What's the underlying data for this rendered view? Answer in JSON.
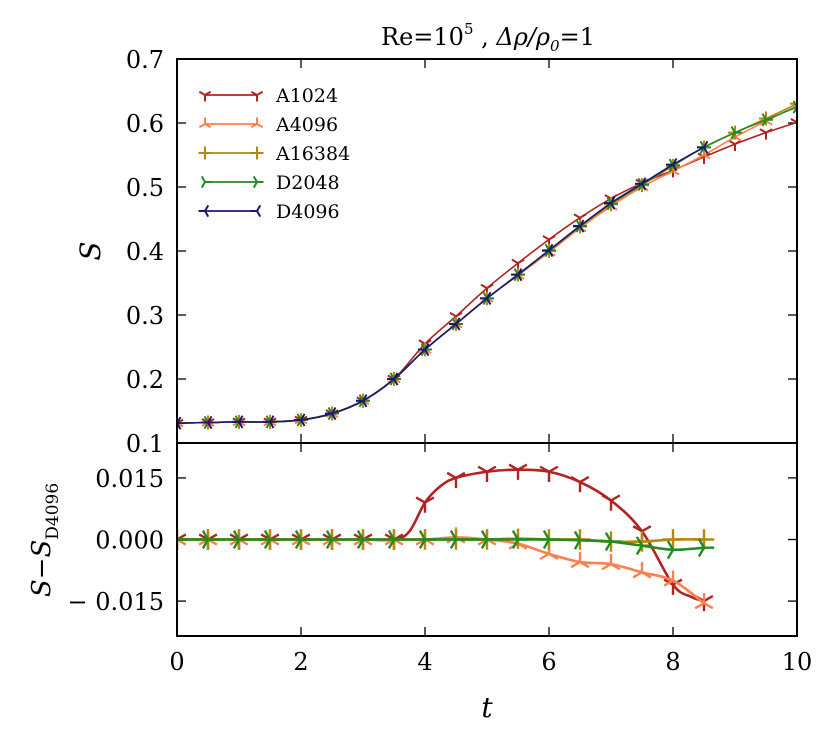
{
  "chart_data": [
    {
      "type": "line",
      "title_parts": {
        "re": "Re",
        "eq1": "=10",
        "exp": "5",
        "sep": " ,  ",
        "delta": "Δρ/ρ",
        "sub": "0",
        "eq2": "=1"
      },
      "title": "Re = 10^5 , Δρ/ρ0 = 1",
      "xlabel": "t",
      "ylabel": "S",
      "xlim": [
        0,
        10
      ],
      "ylim": [
        0.1,
        0.7
      ],
      "xticks": [
        "0",
        "2",
        "4",
        "6",
        "8",
        "10"
      ],
      "yticks": [
        "0.1",
        "0.2",
        "0.3",
        "0.4",
        "0.5",
        "0.6",
        "0.7"
      ],
      "legend": "top-left",
      "series": [
        {
          "name": "A1024",
          "color": "#b22222",
          "marker": "tri_down",
          "x": [
            0,
            0.5,
            1,
            1.5,
            2,
            2.5,
            3,
            3.5,
            4,
            4.5,
            5,
            5.5,
            6,
            6.5,
            7,
            7.5,
            8,
            8.5,
            9,
            9.5,
            10
          ],
          "y": [
            0.131,
            0.132,
            0.133,
            0.133,
            0.136,
            0.146,
            0.166,
            0.2,
            0.255,
            0.298,
            0.342,
            0.381,
            0.418,
            0.452,
            0.482,
            0.506,
            0.526,
            0.547,
            0.567,
            0.585,
            0.601
          ]
        },
        {
          "name": "A4096",
          "color": "#ff7f50",
          "marker": "tri_up",
          "x": [
            0,
            0.5,
            1,
            1.5,
            2,
            2.5,
            3,
            3.5,
            4,
            4.5,
            5,
            5.5,
            6,
            6.5,
            7,
            7.5,
            8,
            8.5,
            9,
            9.5,
            10
          ],
          "y": [
            0.131,
            0.132,
            0.133,
            0.133,
            0.136,
            0.146,
            0.166,
            0.2,
            0.246,
            0.286,
            0.326,
            0.362,
            0.398,
            0.436,
            0.47,
            0.5,
            0.525,
            0.55,
            0.578,
            0.603,
            0.627
          ]
        },
        {
          "name": "A16384",
          "color": "#b8860b",
          "marker": "plus",
          "x": [
            0,
            0.5,
            1,
            1.5,
            2,
            2.5,
            3,
            3.5,
            4,
            4.5,
            5,
            5.5,
            6,
            6.5,
            7,
            7.5,
            8,
            8.5,
            9,
            9.5,
            10
          ],
          "y": [
            0.131,
            0.132,
            0.133,
            0.133,
            0.136,
            0.146,
            0.166,
            0.2,
            0.246,
            0.286,
            0.326,
            0.363,
            0.4,
            0.438,
            0.473,
            0.503,
            0.533,
            0.562,
            0.585,
            0.607,
            0.63
          ]
        },
        {
          "name": "D2048",
          "color": "#228b22",
          "marker": "tri_right",
          "x": [
            0,
            0.5,
            1,
            1.5,
            2,
            2.5,
            3,
            3.5,
            4,
            4.5,
            5,
            5.5,
            6,
            6.5,
            7,
            7.5,
            8,
            8.5,
            9,
            9.5,
            10
          ],
          "y": [
            0.131,
            0.132,
            0.133,
            0.133,
            0.136,
            0.146,
            0.166,
            0.2,
            0.246,
            0.286,
            0.326,
            0.363,
            0.401,
            0.439,
            0.474,
            0.504,
            0.534,
            0.562,
            0.585,
            0.605,
            0.625
          ]
        },
        {
          "name": "D4096",
          "color": "#191970",
          "marker": "tri_left",
          "x": [
            0,
            0.5,
            1,
            1.5,
            2,
            2.5,
            3,
            3.5,
            4,
            4.5,
            5,
            5.5,
            6,
            6.5,
            7,
            7.5,
            8,
            8.5
          ],
          "y": [
            0.131,
            0.132,
            0.133,
            0.133,
            0.136,
            0.146,
            0.166,
            0.2,
            0.246,
            0.286,
            0.326,
            0.363,
            0.401,
            0.439,
            0.475,
            0.505,
            0.535,
            0.562
          ]
        }
      ]
    },
    {
      "type": "line",
      "xlabel": "t",
      "ylabel_parts": {
        "main": "S−S",
        "sub": "D4096"
      },
      "ylabel": "S − S_D4096",
      "xlim": [
        0,
        10
      ],
      "ylim": [
        -0.0235,
        0.0235
      ],
      "yticks": [
        {
          "value": 0.015,
          "label": "0.015"
        },
        {
          "value": 0.0,
          "label": "0.000"
        },
        {
          "value": -0.015,
          "label": "− 0.015"
        }
      ],
      "series": [
        {
          "name": "A1024",
          "color": "#b22222",
          "marker": "tri_down",
          "x": [
            0,
            0.5,
            1,
            1.5,
            2,
            2.5,
            3,
            3.5,
            3.75,
            4,
            4.25,
            4.5,
            5,
            5.5,
            6,
            6.5,
            7,
            7.5,
            8,
            8.3,
            8.5
          ],
          "y": [
            0,
            0,
            0,
            0,
            0,
            0,
            0,
            0,
            0.002,
            0.009,
            0.013,
            0.015,
            0.0165,
            0.017,
            0.0165,
            0.014,
            0.0095,
            0.002,
            -0.011,
            -0.014,
            -0.015
          ]
        },
        {
          "name": "A4096",
          "color": "#ff7f50",
          "marker": "tri_up",
          "x": [
            0,
            0.5,
            1,
            1.5,
            2,
            2.5,
            3,
            3.5,
            4,
            4.5,
            5,
            5.5,
            6,
            6.5,
            7,
            7.5,
            8,
            8.5
          ],
          "y": [
            0,
            0,
            0,
            0,
            0,
            0,
            0,
            0,
            0,
            0.0005,
            0,
            -0.001,
            -0.0035,
            -0.0055,
            -0.006,
            -0.008,
            -0.01,
            -0.0155
          ]
        },
        {
          "name": "A16384",
          "color": "#b8860b",
          "marker": "plus",
          "x": [
            0,
            0.5,
            1,
            1.5,
            2,
            2.5,
            3,
            3.5,
            4,
            4.5,
            5,
            5.5,
            6,
            6.5,
            7,
            7.5,
            8,
            8.5
          ],
          "y": [
            0,
            0,
            0,
            0,
            0,
            0,
            0,
            0,
            0,
            0,
            0,
            0.0002,
            0,
            0,
            -0.0005,
            -0.0005,
            0,
            0
          ]
        },
        {
          "name": "D2048",
          "color": "#228b22",
          "marker": "tri_right",
          "x": [
            0,
            0.5,
            1,
            1.5,
            2,
            2.5,
            3,
            3.5,
            4,
            4.5,
            5,
            5.5,
            6,
            6.5,
            7,
            7.5,
            8,
            8.5
          ],
          "y": [
            0,
            0,
            0,
            0,
            0,
            0,
            0,
            0,
            0,
            0,
            0,
            0,
            0,
            -0.0002,
            -0.0005,
            -0.0015,
            -0.0025,
            -0.002
          ]
        }
      ]
    }
  ]
}
